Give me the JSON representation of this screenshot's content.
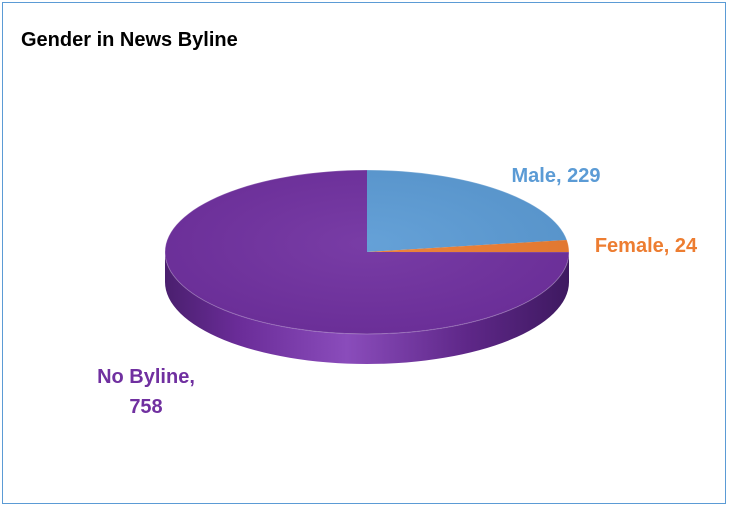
{
  "chart_data": {
    "type": "pie",
    "title": "Gender in News Byline",
    "categories": [
      "Male",
      "Female",
      "No Byline"
    ],
    "values": [
      229,
      24,
      758
    ],
    "colors": [
      "#5b9bd5",
      "#ed7d31",
      "#7030a0"
    ],
    "data_labels": [
      {
        "lines": [
          "Male, 229"
        ]
      },
      {
        "lines": [
          "Female, 24"
        ]
      },
      {
        "lines": [
          "No Byline,",
          "758"
        ]
      }
    ],
    "style": "3d",
    "legend": "none"
  }
}
